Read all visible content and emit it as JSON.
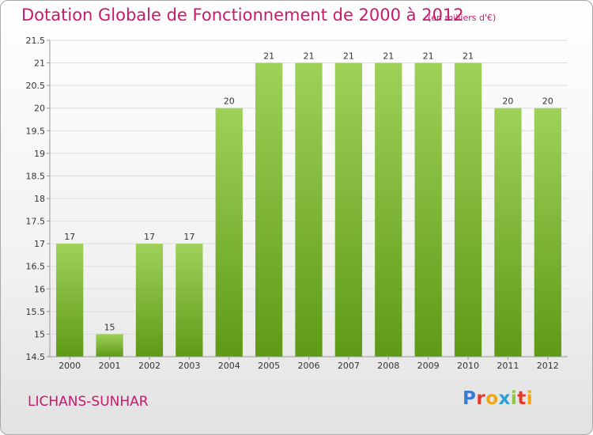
{
  "header": {
    "title": "Dotation Globale de Fonctionnement de 2000 à 2012",
    "subtitle": "(en milliers d'€)"
  },
  "footer": {
    "commune": "LICHANS-SUNHAR",
    "logo_text": "Proxiti",
    "logo_colors": [
      "#3a7bd5",
      "#e8382a",
      "#f2a516",
      "#2a9fd8",
      "#8cc63f",
      "#e8382a",
      "#f2a516"
    ]
  },
  "colors": {
    "title": "#c8196e",
    "bar_top": "#9fd159",
    "bar_bottom": "#5e9a16",
    "grid": "#dddddd",
    "axis": "#999999"
  },
  "chart_data": {
    "type": "bar",
    "title": "Dotation Globale de Fonctionnement de 2000 à 2012",
    "subtitle": "(en milliers d'€)",
    "categories": [
      "2000",
      "2001",
      "2002",
      "2003",
      "2004",
      "2005",
      "2006",
      "2007",
      "2008",
      "2009",
      "2010",
      "2011",
      "2012"
    ],
    "values": [
      17,
      15,
      17,
      17,
      20,
      21,
      21,
      21,
      21,
      21,
      21,
      20,
      20
    ],
    "data_labels": [
      "17",
      "15",
      "17",
      "17",
      "20",
      "21",
      "21",
      "21",
      "21",
      "21",
      "21",
      "20",
      "20"
    ],
    "xlabel": "",
    "ylabel": "",
    "ylim": [
      14.5,
      21.5
    ],
    "yticks": [
      14.5,
      15,
      15.5,
      16,
      16.5,
      17,
      17.5,
      18,
      18.5,
      19,
      19.5,
      20,
      20.5,
      21,
      21.5
    ],
    "ytick_labels": [
      "14.5",
      "15",
      "15.5",
      "16",
      "16.5",
      "17",
      "17.5",
      "18",
      "18.5",
      "19",
      "19.5",
      "20",
      "20.5",
      "21",
      "21.5"
    ],
    "grid": true,
    "legend": "none"
  }
}
